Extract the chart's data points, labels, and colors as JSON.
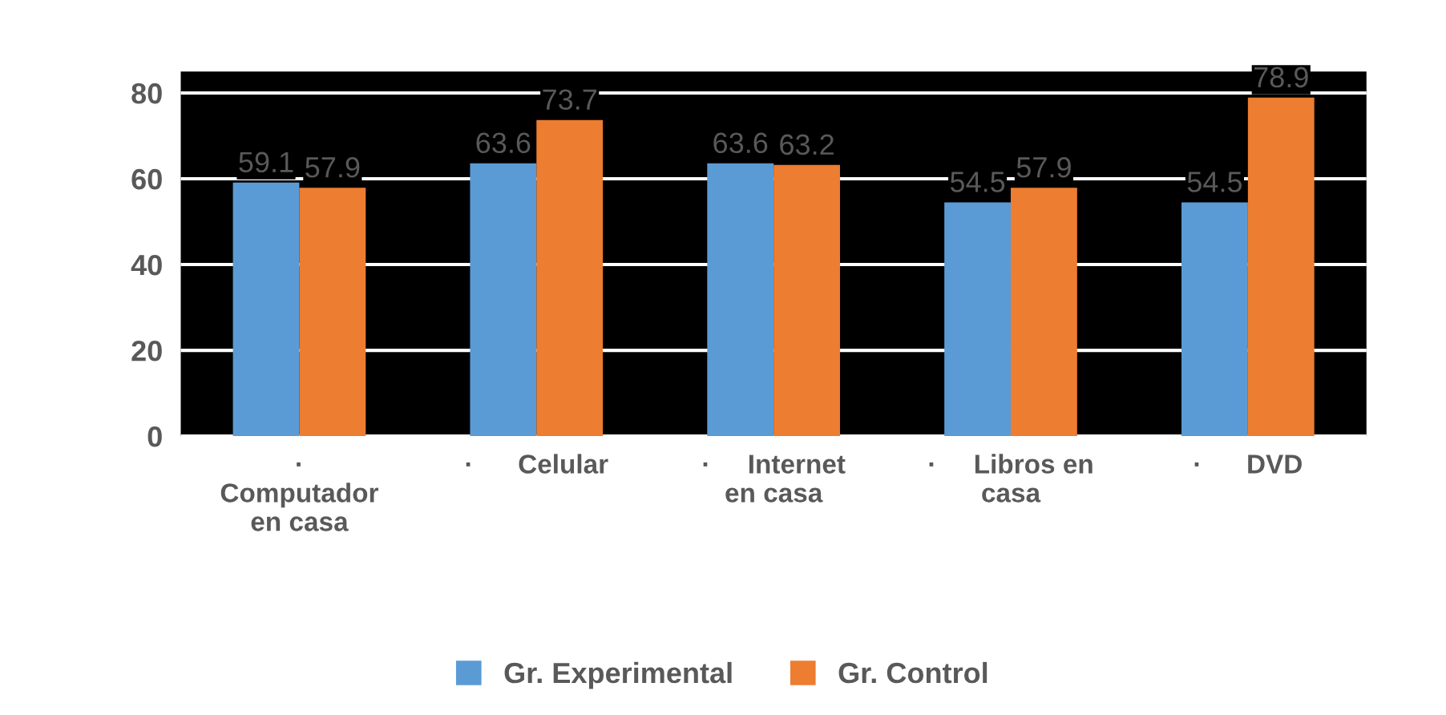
{
  "chart_data": {
    "type": "bar",
    "categories": [
      "·\nComputador\nen casa",
      "·      Celular",
      "·     Internet\nen casa",
      "·     Libros en\ncasa",
      "·      DVD"
    ],
    "series": [
      {
        "name": "Gr. Experimental",
        "color": "#5b9bd5",
        "values": [
          59.1,
          63.6,
          63.6,
          54.5,
          54.5
        ]
      },
      {
        "name": "Gr. Control",
        "color": "#ed7d31",
        "values": [
          57.9,
          73.7,
          63.2,
          57.9,
          78.9
        ]
      }
    ],
    "ylim": [
      0,
      85
    ],
    "yticks": [
      0,
      20,
      40,
      60,
      80
    ],
    "grid": "y",
    "legend": "bottom",
    "data_labels": true
  }
}
